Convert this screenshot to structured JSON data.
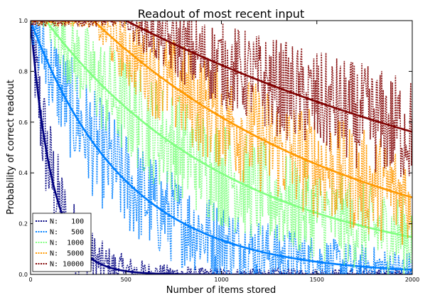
{
  "chart_data": {
    "type": "line",
    "title": "Readout of most recent input",
    "xlabel": "Number of items stored",
    "ylabel": "Probability of correct readout",
    "xlim": [
      0,
      2000
    ],
    "ylim": [
      0.0,
      1.0
    ],
    "xticks": [
      "0",
      "500",
      "1000",
      "1500",
      "2000"
    ],
    "yticks": [
      "0.0",
      "0.2",
      "0.4",
      "0.6",
      "0.8",
      "1.0"
    ],
    "legend_position": "bottom-left",
    "grid": false,
    "series": [
      {
        "name": "N:   100",
        "color": "#000080",
        "theory_decay": 115,
        "theory_sat_items": 0
      },
      {
        "name": "N:   500",
        "color": "#0080ff",
        "theory_decay": 500,
        "theory_sat_items": 0
      },
      {
        "name": "N:  1000",
        "color": "#80ff80",
        "theory_decay": 1000,
        "theory_sat_items": 80
      },
      {
        "name": "N:  5000",
        "color": "#ff9900",
        "theory_decay": 1400,
        "theory_sat_items": 330
      },
      {
        "name": "N: 10000",
        "color": "#800000",
        "theory_decay": 2600,
        "theory_sat_items": 500
      }
    ]
  }
}
